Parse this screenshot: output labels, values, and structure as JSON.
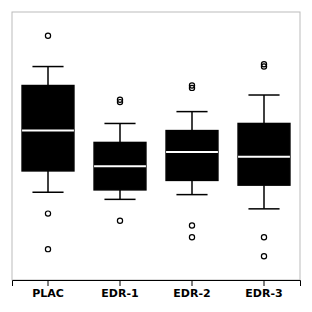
{
  "chart_data": {
    "type": "box",
    "categories": [
      "PLAC",
      "EDR-1",
      "EDR-2",
      "EDR-3"
    ],
    "q25": [
      0.38,
      0.3,
      0.34,
      0.32
    ],
    "median": [
      0.55,
      0.4,
      0.46,
      0.44
    ],
    "q75": [
      0.74,
      0.5,
      0.55,
      0.58
    ],
    "whisker_low": [
      0.29,
      0.26,
      0.28,
      0.22
    ],
    "whisker_high": [
      0.82,
      0.58,
      0.63,
      0.7
    ],
    "outliers_high": [
      [
        0.95
      ],
      [
        0.67,
        0.68
      ],
      [
        0.73,
        0.74
      ],
      [
        0.82,
        0.83
      ]
    ],
    "outliers_low": [
      [
        0.2,
        0.05
      ],
      [
        0.17
      ],
      [
        0.15,
        0.1
      ],
      [
        0.1,
        0.02
      ]
    ],
    "color": "#000000",
    "ylim": [
      -0.08,
      1.05
    ],
    "tick_labels": "x",
    "grid": false
  }
}
